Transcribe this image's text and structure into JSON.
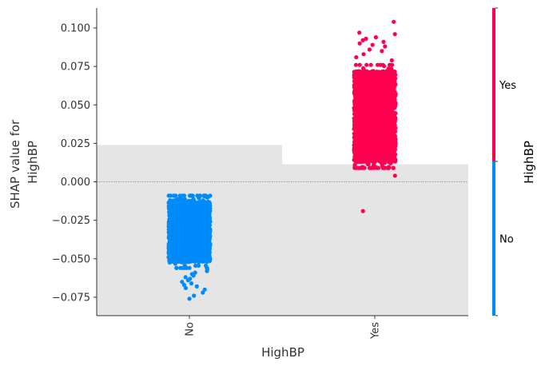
{
  "chart_data": {
    "type": "scatter",
    "subtype": "shap-dependence-strip",
    "xlabel": "HighBP",
    "ylabel_lines": [
      "SHAP value for",
      "HighBP"
    ],
    "categories": [
      "No",
      "Yes"
    ],
    "ylim": [
      -0.087,
      0.113
    ],
    "yticks": [
      0.1,
      0.075,
      0.05,
      0.025,
      0.0,
      -0.025,
      -0.05,
      -0.075
    ],
    "ytick_labels": [
      "0.100",
      "0.075",
      "0.050",
      "0.025",
      "0.000",
      "−0.025",
      "−0.050",
      "−0.075"
    ],
    "zero_line": true,
    "grid": false,
    "background_histogram": {
      "color": "#e5e5e5",
      "bins": [
        {
          "category": "No",
          "relative_height": 0.53
        },
        {
          "category": "Yes",
          "relative_height": 0.47
        }
      ]
    },
    "series": [
      {
        "category": "No",
        "color": "#008bfb",
        "distribution": {
          "dense_min": -0.052,
          "dense_max": -0.013,
          "center": -0.03
        },
        "points": [
          -0.012,
          -0.013,
          -0.056,
          -0.058,
          -0.06,
          -0.061,
          -0.062,
          -0.063,
          -0.064,
          -0.065,
          -0.067,
          -0.068,
          -0.069,
          -0.07,
          -0.072,
          -0.074,
          -0.076,
          -0.066,
          -0.059,
          -0.057
        ]
      },
      {
        "category": "Yes",
        "color": "#ff0051",
        "distribution": {
          "dense_min": 0.013,
          "dense_max": 0.072,
          "center": 0.04
        },
        "points": [
          0.104,
          0.097,
          0.096,
          0.094,
          0.093,
          0.092,
          0.091,
          0.09,
          0.089,
          0.088,
          0.086,
          0.085,
          0.083,
          0.081,
          0.079,
          0.012,
          0.011,
          0.013,
          0.009,
          0.004,
          -0.019
        ]
      }
    ],
    "colorbar": {
      "title": "HighBP",
      "labels": [
        "Yes",
        "No"
      ],
      "colors": [
        "#ff0051",
        "#008bfb"
      ]
    }
  }
}
